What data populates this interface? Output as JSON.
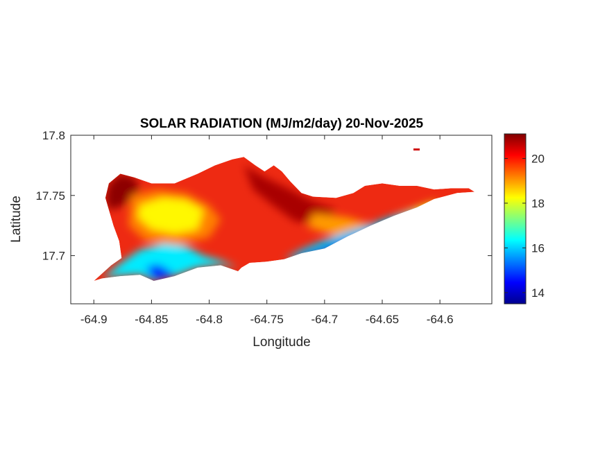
{
  "title": "SOLAR RADIATION (MJ/m2/day) 20-Nov-2025",
  "xlabel": "Longitude",
  "ylabel": "Latitude",
  "x_ticks": [
    {
      "value": -64.9,
      "label": "-64.9"
    },
    {
      "value": -64.85,
      "label": "-64.85"
    },
    {
      "value": -64.8,
      "label": "-64.8"
    },
    {
      "value": -64.75,
      "label": "-64.75"
    },
    {
      "value": -64.7,
      "label": "-64.7"
    },
    {
      "value": -64.65,
      "label": "-64.65"
    },
    {
      "value": -64.6,
      "label": "-64.6"
    }
  ],
  "y_ticks": [
    {
      "value": 17.8,
      "label": "17.8"
    },
    {
      "value": 17.75,
      "label": "17.75"
    },
    {
      "value": 17.7,
      "label": "17.7"
    }
  ],
  "colorbar": {
    "colormap": "jet",
    "range": [
      13.5,
      21.1
    ],
    "ticks": [
      {
        "value": 14,
        "label": "14"
      },
      {
        "value": 16,
        "label": "16"
      },
      {
        "value": 18,
        "label": "18"
      },
      {
        "value": 20,
        "label": "20"
      }
    ]
  },
  "chart_data": {
    "type": "heatmap",
    "title": "SOLAR RADIATION (MJ/m2/day) 20-Nov-2025",
    "xlabel": "Longitude",
    "ylabel": "Latitude",
    "xlim": [
      -64.92,
      -64.555
    ],
    "ylim": [
      17.66,
      17.8
    ],
    "value_range": [
      13.5,
      21.1
    ],
    "colormap": "jet",
    "grid": false,
    "legend": "colorbar right",
    "island_outline": [
      [
        -64.9,
        17.679
      ],
      [
        -64.885,
        17.692
      ],
      [
        -64.876,
        17.698
      ],
      [
        -64.878,
        17.712
      ],
      [
        -64.883,
        17.725
      ],
      [
        -64.887,
        17.738
      ],
      [
        -64.89,
        17.748
      ],
      [
        -64.887,
        17.76
      ],
      [
        -64.877,
        17.768
      ],
      [
        -64.865,
        17.765
      ],
      [
        -64.85,
        17.76
      ],
      [
        -64.83,
        17.76
      ],
      [
        -64.81,
        17.768
      ],
      [
        -64.795,
        17.775
      ],
      [
        -64.78,
        17.78
      ],
      [
        -64.77,
        17.782
      ],
      [
        -64.76,
        17.775
      ],
      [
        -64.752,
        17.77
      ],
      [
        -64.744,
        17.775
      ],
      [
        -64.737,
        17.77
      ],
      [
        -64.73,
        17.762
      ],
      [
        -64.72,
        17.752
      ],
      [
        -64.71,
        17.749
      ],
      [
        -64.69,
        17.748
      ],
      [
        -64.675,
        17.752
      ],
      [
        -64.665,
        17.758
      ],
      [
        -64.65,
        17.76
      ],
      [
        -64.635,
        17.758
      ],
      [
        -64.62,
        17.758
      ],
      [
        -64.605,
        17.755
      ],
      [
        -64.59,
        17.756
      ],
      [
        -64.575,
        17.756
      ],
      [
        -64.57,
        17.753
      ],
      [
        -64.585,
        17.752
      ],
      [
        -64.605,
        17.747
      ],
      [
        -64.62,
        17.74
      ],
      [
        -64.64,
        17.733
      ],
      [
        -64.66,
        17.725
      ],
      [
        -64.68,
        17.716
      ],
      [
        -64.7,
        17.706
      ],
      [
        -64.72,
        17.702
      ],
      [
        -64.735,
        17.697
      ],
      [
        -64.75,
        17.695
      ],
      [
        -64.765,
        17.694
      ],
      [
        -64.772,
        17.69
      ],
      [
        -64.775,
        17.687
      ],
      [
        -64.79,
        17.692
      ],
      [
        -64.81,
        17.69
      ],
      [
        -64.83,
        17.683
      ],
      [
        -64.848,
        17.679
      ],
      [
        -64.86,
        17.684
      ],
      [
        -64.877,
        17.683
      ],
      [
        -64.885,
        17.682
      ],
      [
        -64.893,
        17.681
      ],
      [
        -64.9,
        17.679
      ]
    ],
    "value_regions": [
      {
        "polygon": [
          [
            -64.887,
            17.738
          ],
          [
            -64.89,
            17.748
          ],
          [
            -64.887,
            17.76
          ],
          [
            -64.877,
            17.768
          ],
          [
            -64.865,
            17.765
          ],
          [
            -64.86,
            17.755
          ],
          [
            -64.87,
            17.745
          ],
          [
            -64.878,
            17.74
          ]
        ],
        "value": 21.0
      },
      {
        "polygon": [
          [
            -64.77,
            17.775
          ],
          [
            -64.752,
            17.765
          ],
          [
            -64.73,
            17.755
          ],
          [
            -64.71,
            17.745
          ],
          [
            -64.69,
            17.738
          ],
          [
            -64.7,
            17.728
          ],
          [
            -64.725,
            17.728
          ],
          [
            -64.745,
            17.742
          ],
          [
            -64.762,
            17.755
          ]
        ],
        "value": 20.8
      },
      {
        "polygon": [
          [
            -64.868,
            17.75
          ],
          [
            -64.845,
            17.755
          ],
          [
            -64.82,
            17.752
          ],
          [
            -64.8,
            17.742
          ],
          [
            -64.79,
            17.73
          ],
          [
            -64.8,
            17.715
          ],
          [
            -64.83,
            17.708
          ],
          [
            -64.855,
            17.712
          ],
          [
            -64.87,
            17.725
          ]
        ],
        "value": 19.2
      },
      {
        "polygon": [
          [
            -64.71,
            17.735
          ],
          [
            -64.68,
            17.732
          ],
          [
            -64.66,
            17.726
          ],
          [
            -64.65,
            17.718
          ],
          [
            -64.665,
            17.712
          ],
          [
            -64.69,
            17.716
          ],
          [
            -64.715,
            17.724
          ]
        ],
        "value": 19.0
      },
      {
        "polygon": [
          [
            -64.86,
            17.742
          ],
          [
            -64.84,
            17.748
          ],
          [
            -64.82,
            17.746
          ],
          [
            -64.805,
            17.738
          ],
          [
            -64.81,
            17.722
          ],
          [
            -64.83,
            17.718
          ],
          [
            -64.85,
            17.722
          ],
          [
            -64.862,
            17.732
          ]
        ],
        "value": 18.3
      },
      {
        "polygon": [
          [
            -64.64,
            17.733
          ],
          [
            -64.62,
            17.74
          ],
          [
            -64.605,
            17.745
          ],
          [
            -64.6,
            17.74
          ],
          [
            -64.615,
            17.733
          ],
          [
            -64.635,
            17.728
          ]
        ],
        "value": 18.0
      },
      {
        "polygon": [
          [
            -64.893,
            17.681
          ],
          [
            -64.875,
            17.695
          ],
          [
            -64.86,
            17.705
          ],
          [
            -64.84,
            17.71
          ],
          [
            -64.82,
            17.708
          ],
          [
            -64.805,
            17.7
          ],
          [
            -64.79,
            17.696
          ],
          [
            -64.775,
            17.69
          ],
          [
            -64.79,
            17.692
          ],
          [
            -64.81,
            17.69
          ],
          [
            -64.83,
            17.683
          ],
          [
            -64.848,
            17.679
          ],
          [
            -64.86,
            17.684
          ],
          [
            -64.877,
            17.683
          ]
        ],
        "value": 16.2
      },
      {
        "polygon": [
          [
            -64.735,
            17.697
          ],
          [
            -64.72,
            17.705
          ],
          [
            -64.7,
            17.713
          ],
          [
            -64.68,
            17.72
          ],
          [
            -64.66,
            17.726
          ],
          [
            -64.64,
            17.733
          ],
          [
            -64.62,
            17.737
          ],
          [
            -64.62,
            17.733
          ],
          [
            -64.64,
            17.726
          ],
          [
            -64.66,
            17.718
          ],
          [
            -64.68,
            17.71
          ],
          [
            -64.7,
            17.702
          ],
          [
            -64.72,
            17.698
          ]
        ],
        "value": 16.0
      },
      {
        "polygon": [
          [
            -64.725,
            17.699
          ],
          [
            -64.705,
            17.705
          ],
          [
            -64.685,
            17.712
          ],
          [
            -64.665,
            17.718
          ],
          [
            -64.645,
            17.724
          ],
          [
            -64.63,
            17.727
          ],
          [
            -64.64,
            17.722
          ],
          [
            -64.66,
            17.714
          ],
          [
            -64.685,
            17.706
          ],
          [
            -64.71,
            17.7
          ]
        ],
        "value": 14.3
      },
      {
        "polygon": [
          [
            -64.855,
            17.69
          ],
          [
            -64.845,
            17.693
          ],
          [
            -64.835,
            17.688
          ],
          [
            -64.83,
            17.683
          ],
          [
            -64.848,
            17.68
          ]
        ],
        "value": 14.5
      }
    ]
  }
}
